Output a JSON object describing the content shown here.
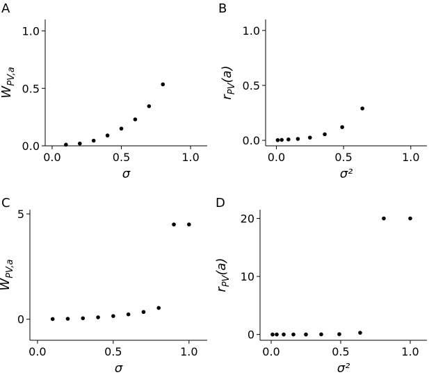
{
  "chart_data": [
    {
      "panel": "A",
      "type": "scatter",
      "xlabel": "σ",
      "ylabel": {
        "main": "W",
        "sub": "PV,a"
      },
      "xlim": [
        -0.05,
        1.12
      ],
      "ylim": [
        0,
        1.1
      ],
      "xticks": [
        0.0,
        0.5,
        1.0
      ],
      "xtick_labels": [
        "0.0",
        "0.5",
        "1.0"
      ],
      "yticks": [
        0.0,
        0.5,
        1.0
      ],
      "ytick_labels": [
        "0.0",
        "0.5",
        "1.0"
      ],
      "grid": false,
      "series": [
        {
          "x": [
            0.1,
            0.2,
            0.3,
            0.4,
            0.5,
            0.6,
            0.7,
            0.8
          ],
          "y": [
            0.01,
            0.02,
            0.045,
            0.09,
            0.15,
            0.23,
            0.345,
            0.535
          ]
        }
      ]
    },
    {
      "panel": "B",
      "type": "scatter",
      "xlabel": "σ²",
      "ylabel": {
        "main": "r",
        "sub": "PV",
        "suffix": "(a)"
      },
      "xlim": [
        -0.08,
        1.12
      ],
      "ylim": [
        -0.05,
        1.1
      ],
      "xticks": [
        0.0,
        0.5,
        1.0
      ],
      "xtick_labels": [
        "0.0",
        "0.5",
        "1.0"
      ],
      "yticks": [
        0.0,
        0.5,
        1.0
      ],
      "ytick_labels": [
        "0.0",
        "0.5",
        "1.0"
      ],
      "grid": false,
      "series": [
        {
          "x": [
            0.01,
            0.04,
            0.09,
            0.16,
            0.25,
            0.36,
            0.49,
            0.64
          ],
          "y": [
            0.002,
            0.004,
            0.008,
            0.013,
            0.025,
            0.055,
            0.12,
            0.29
          ]
        }
      ]
    },
    {
      "panel": "C",
      "type": "scatter",
      "xlabel": "σ",
      "ylabel": {
        "main": "W",
        "sub": "PV,a"
      },
      "xlim": [
        -0.05,
        1.12
      ],
      "ylim": [
        -1,
        5.2
      ],
      "xticks": [
        0.0,
        0.5,
        1.0
      ],
      "xtick_labels": [
        "0.0",
        "0.5",
        "1.0"
      ],
      "yticks": [
        0,
        5
      ],
      "ytick_labels": [
        "0",
        "5"
      ],
      "grid": false,
      "series": [
        {
          "x": [
            0.1,
            0.2,
            0.3,
            0.4,
            0.5,
            0.6,
            0.7,
            0.8,
            0.9,
            1.0
          ],
          "y": [
            0.01,
            0.02,
            0.045,
            0.09,
            0.15,
            0.23,
            0.345,
            0.535,
            4.5,
            4.5
          ]
        }
      ]
    },
    {
      "panel": "D",
      "type": "scatter",
      "xlabel": "σ²",
      "ylabel": {
        "main": "r",
        "sub": "PV",
        "suffix": "(a)"
      },
      "xlim": [
        -0.08,
        1.12
      ],
      "ylim": [
        -1,
        21.5
      ],
      "xticks": [
        0.0,
        0.5,
        1.0
      ],
      "xtick_labels": [
        "0.0",
        "0.5",
        "1.0"
      ],
      "yticks": [
        0,
        10,
        20
      ],
      "ytick_labels": [
        "0",
        "10",
        "20"
      ],
      "grid": false,
      "series": [
        {
          "x": [
            0.01,
            0.04,
            0.09,
            0.16,
            0.25,
            0.36,
            0.49,
            0.64,
            0.81,
            1.0
          ],
          "y": [
            0.0,
            0.0,
            0.0,
            0.0,
            0.0,
            0.02,
            0.05,
            0.3,
            20,
            20
          ]
        }
      ]
    }
  ]
}
